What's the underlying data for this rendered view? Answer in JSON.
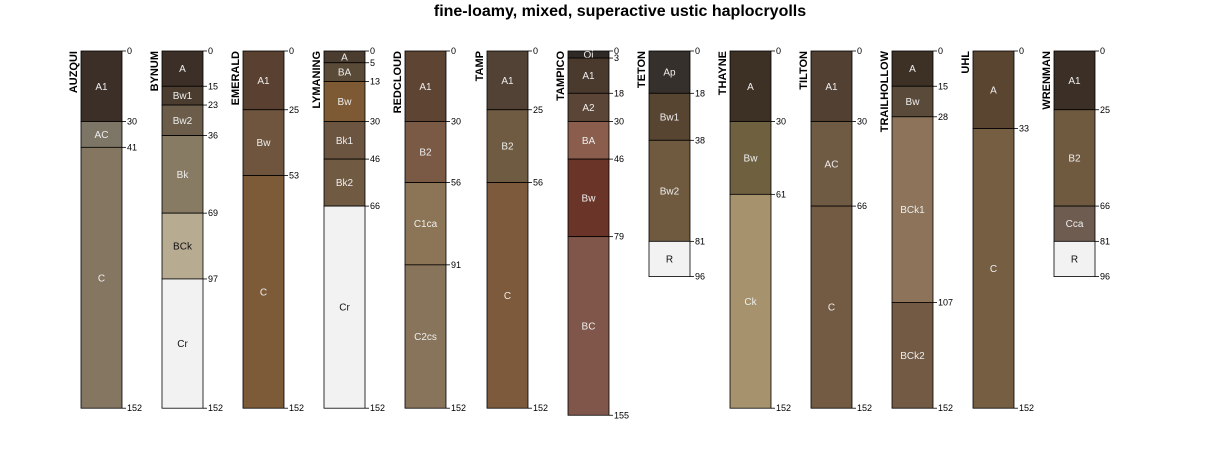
{
  "chart_data": {
    "type": "soil-profile-sketch",
    "title": "fine-loamy, mixed, superactive ustic haplocryolls",
    "depth_unit": "cm",
    "max_depth": 155,
    "profiles": [
      {
        "name": "AUZQUI",
        "horizons": [
          {
            "name": "A1",
            "top": 0,
            "bottom": 30,
            "color": "#3b2f27"
          },
          {
            "name": "AC",
            "top": 30,
            "bottom": 41,
            "color": "#7d7566"
          },
          {
            "name": "C",
            "top": 41,
            "bottom": 152,
            "color": "#847661"
          }
        ]
      },
      {
        "name": "BYNUM",
        "horizons": [
          {
            "name": "A",
            "top": 0,
            "bottom": 15,
            "color": "#3b2f27"
          },
          {
            "name": "Bw1",
            "top": 15,
            "bottom": 23,
            "color": "#4a3d2f"
          },
          {
            "name": "Bw2",
            "top": 23,
            "bottom": 36,
            "color": "#6b5d4a"
          },
          {
            "name": "Bk",
            "top": 36,
            "bottom": 69,
            "color": "#877b63"
          },
          {
            "name": "BCk",
            "top": 69,
            "bottom": 97,
            "color": "#b7ab91"
          },
          {
            "name": "Cr",
            "top": 97,
            "bottom": 152,
            "color": "#f2f2f2"
          }
        ]
      },
      {
        "name": "EMERALD",
        "horizons": [
          {
            "name": "A1",
            "top": 0,
            "bottom": 25,
            "color": "#5a4030"
          },
          {
            "name": "Bw",
            "top": 25,
            "bottom": 53,
            "color": "#6f553e"
          },
          {
            "name": "C",
            "top": 53,
            "bottom": 152,
            "color": "#7d5a38"
          }
        ]
      },
      {
        "name": "LYMANING",
        "horizons": [
          {
            "name": "A",
            "top": 0,
            "bottom": 5,
            "color": "#4a3d2f"
          },
          {
            "name": "BA",
            "top": 5,
            "bottom": 13,
            "color": "#5a4a38"
          },
          {
            "name": "Bw",
            "top": 13,
            "bottom": 30,
            "color": "#7d5a34"
          },
          {
            "name": "Bk1",
            "top": 30,
            "bottom": 46,
            "color": "#6b5540"
          },
          {
            "name": "Bk2",
            "top": 46,
            "bottom": 66,
            "color": "#705a42"
          },
          {
            "name": "Cr",
            "top": 66,
            "bottom": 152,
            "color": "#f2f2f2"
          }
        ]
      },
      {
        "name": "REDCLOUD",
        "horizons": [
          {
            "name": "A1",
            "top": 0,
            "bottom": 30,
            "color": "#5e4433"
          },
          {
            "name": "B2",
            "top": 30,
            "bottom": 56,
            "color": "#7a5a44"
          },
          {
            "name": "C1ca",
            "top": 56,
            "bottom": 91,
            "color": "#8c7556"
          },
          {
            "name": "C2cs",
            "top": 91,
            "bottom": 152,
            "color": "#87745a"
          }
        ]
      },
      {
        "name": "TAMP",
        "horizons": [
          {
            "name": "A1",
            "top": 0,
            "bottom": 25,
            "color": "#524236"
          },
          {
            "name": "B2",
            "top": 25,
            "bottom": 56,
            "color": "#6f5a42"
          },
          {
            "name": "C",
            "top": 56,
            "bottom": 152,
            "color": "#7d5a3c"
          }
        ]
      },
      {
        "name": "TAMPICO",
        "horizons": [
          {
            "name": "Oi",
            "top": 0,
            "bottom": 3,
            "color": "#2f2a26"
          },
          {
            "name": "A1",
            "top": 3,
            "bottom": 18,
            "color": "#4a3a2e"
          },
          {
            "name": "A2",
            "top": 18,
            "bottom": 30,
            "color": "#5a4536"
          },
          {
            "name": "BA",
            "top": 30,
            "bottom": 46,
            "color": "#8a5d4c"
          },
          {
            "name": "Bw",
            "top": 46,
            "bottom": 79,
            "color": "#6b3429"
          },
          {
            "name": "BC",
            "top": 79,
            "bottom": 155,
            "color": "#80564a"
          }
        ]
      },
      {
        "name": "TETON",
        "horizons": [
          {
            "name": "Ap",
            "top": 0,
            "bottom": 18,
            "color": "#36302c"
          },
          {
            "name": "Bw1",
            "top": 18,
            "bottom": 38,
            "color": "#574431"
          },
          {
            "name": "Bw2",
            "top": 38,
            "bottom": 81,
            "color": "#6f5a40"
          },
          {
            "name": "R",
            "top": 81,
            "bottom": 96,
            "color": "#f2f2f2"
          }
        ]
      },
      {
        "name": "THAYNE",
        "horizons": [
          {
            "name": "A",
            "top": 0,
            "bottom": 30,
            "color": "#3d3025"
          },
          {
            "name": "Bw",
            "top": 30,
            "bottom": 61,
            "color": "#6f6040"
          },
          {
            "name": "Ck",
            "top": 61,
            "bottom": 152,
            "color": "#a6936e"
          }
        ]
      },
      {
        "name": "TILTON",
        "horizons": [
          {
            "name": "A1",
            "top": 0,
            "bottom": 30,
            "color": "#524033"
          },
          {
            "name": "AC",
            "top": 30,
            "bottom": 66,
            "color": "#6f5a44"
          },
          {
            "name": "C",
            "top": 66,
            "bottom": 152,
            "color": "#735a42"
          }
        ]
      },
      {
        "name": "TRAILHOLLOW",
        "horizons": [
          {
            "name": "A",
            "top": 0,
            "bottom": 15,
            "color": "#3d3025"
          },
          {
            "name": "Bw",
            "top": 15,
            "bottom": 28,
            "color": "#5a4a3a"
          },
          {
            "name": "BCk1",
            "top": 28,
            "bottom": 107,
            "color": "#8c7359"
          },
          {
            "name": "BCk2",
            "top": 107,
            "bottom": 152,
            "color": "#735a44"
          }
        ]
      },
      {
        "name": "UHL",
        "horizons": [
          {
            "name": "A",
            "top": 0,
            "bottom": 33,
            "color": "#5a4530"
          },
          {
            "name": "C",
            "top": 33,
            "bottom": 152,
            "color": "#765e43"
          }
        ]
      },
      {
        "name": "WRENMAN",
        "horizons": [
          {
            "name": "A1",
            "top": 0,
            "bottom": 25,
            "color": "#3b2f26"
          },
          {
            "name": "B2",
            "top": 25,
            "bottom": 66,
            "color": "#6f5a40"
          },
          {
            "name": "Cca",
            "top": 66,
            "bottom": 81,
            "color": "#6e5c50"
          },
          {
            "name": "R",
            "top": 81,
            "bottom": 96,
            "color": "#f2f2f2"
          }
        ]
      }
    ]
  }
}
